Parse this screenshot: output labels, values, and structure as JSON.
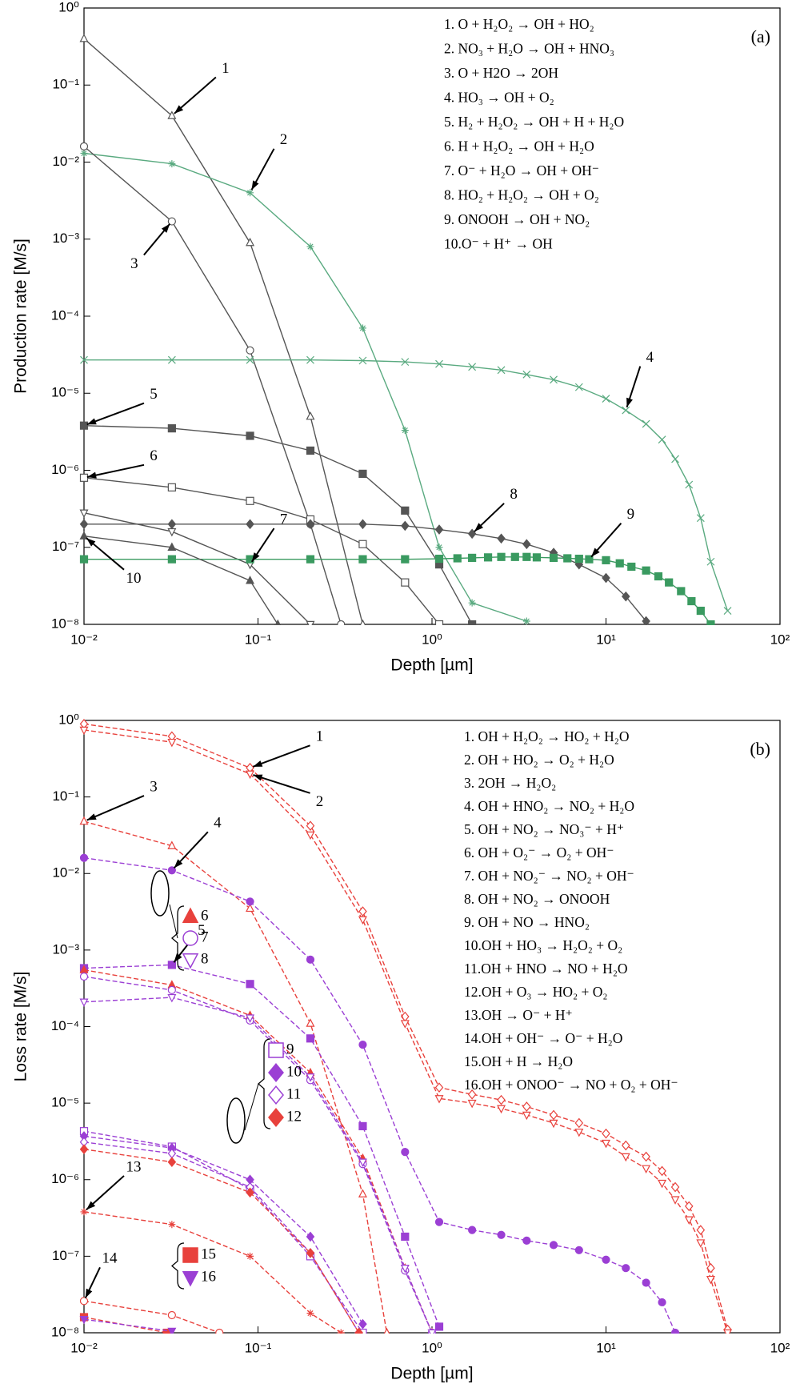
{
  "chart_data": [
    {
      "type": "line",
      "panel": "(a)",
      "xlabel": "Depth [µm]",
      "ylabel": "Production rate [M/s]",
      "xscale": "log",
      "yscale": "log",
      "xlim": [
        0.01,
        100
      ],
      "ylim": [
        1e-08,
        1
      ],
      "xticks": [
        {
          "value": 0.01,
          "label": "10⁻²"
        },
        {
          "value": 0.1,
          "label": "10⁻¹"
        },
        {
          "value": 1,
          "label": "10⁰"
        },
        {
          "value": 10,
          "label": "10¹"
        },
        {
          "value": 100,
          "label": "10²"
        }
      ],
      "yticks": [
        {
          "value": 1e-08,
          "label": "10⁻⁸"
        },
        {
          "value": 1e-07,
          "label": "10⁻⁷"
        },
        {
          "value": 1e-06,
          "label": "10⁻⁶"
        },
        {
          "value": 1e-05,
          "label": "10⁻⁵"
        },
        {
          "value": 0.0001,
          "label": "10⁻⁴"
        },
        {
          "value": 0.001,
          "label": "10⁻³"
        },
        {
          "value": 0.01,
          "label": "10⁻²"
        },
        {
          "value": 0.1,
          "label": "10⁻¹"
        },
        {
          "value": 1,
          "label": "10⁰"
        }
      ],
      "annotations": [
        "1",
        "2",
        "3",
        "4",
        "5",
        "6",
        "7",
        "8",
        "9",
        "10"
      ],
      "series": [
        {
          "name": "1.  O + H₂O₂ → OH + HO₂",
          "color": "#555555",
          "marker": "triangle",
          "x": [
            0.01,
            0.032,
            0.09,
            0.2,
            0.4
          ],
          "values": [
            0.4,
            0.04,
            0.0009,
            5e-06,
            1e-08
          ]
        },
        {
          "name": "2.  NO₃ + H₂O → OH + HNO₃",
          "color": "#5aaa80",
          "marker": "asterisk",
          "x": [
            0.01,
            0.032,
            0.09,
            0.2,
            0.4,
            0.7,
            1.1,
            1.7,
            3.5
          ],
          "values": [
            0.013,
            0.0095,
            0.004,
            0.0008,
            7e-05,
            3.3e-06,
            1e-07,
            1.9e-08,
            1.1e-08
          ]
        },
        {
          "name": "3.  O + H2O → 2OH",
          "color": "#555555",
          "marker": "circle",
          "x": [
            0.01,
            0.032,
            0.09,
            0.2,
            0.3
          ],
          "values": [
            0.016,
            0.0017,
            3.6e-05,
            2e-07,
            1e-08
          ]
        },
        {
          "name": "4.  HO₃ → OH + O₂",
          "color": "#5aaa80",
          "marker": "x",
          "x": [
            0.01,
            0.032,
            0.09,
            0.2,
            0.4,
            0.7,
            1.1,
            1.7,
            2.5,
            3.5,
            5,
            7,
            10,
            13,
            17,
            21,
            25,
            30,
            35,
            40,
            50
          ],
          "values": [
            2.7e-05,
            2.7e-05,
            2.7e-05,
            2.7e-05,
            2.65e-05,
            2.55e-05,
            2.4e-05,
            2.2e-05,
            2e-05,
            1.75e-05,
            1.5e-05,
            1.2e-05,
            8.5e-06,
            6e-06,
            4e-06,
            2.5e-06,
            1.4e-06,
            6.5e-07,
            2.4e-07,
            6.5e-08,
            1.5e-08
          ]
        },
        {
          "name": "5.  H₂ + H₂O₂ → OH + H + H₂O",
          "color": "#555555",
          "marker": "square-filled",
          "x": [
            0.01,
            0.032,
            0.09,
            0.2,
            0.4,
            0.7,
            1.1,
            1.7
          ],
          "values": [
            3.8e-06,
            3.5e-06,
            2.8e-06,
            1.8e-06,
            9e-07,
            3e-07,
            6e-08,
            1e-08
          ]
        },
        {
          "name": "6.  H + H₂O₂ → OH + H₂O",
          "color": "#555555",
          "marker": "square",
          "x": [
            0.01,
            0.032,
            0.09,
            0.2,
            0.4,
            0.7,
            1.1
          ],
          "values": [
            8e-07,
            6e-07,
            4e-07,
            2.3e-07,
            1.1e-07,
            3.5e-08,
            1e-08
          ]
        },
        {
          "name": "7.  O⁻ + H₂O → OH + OH⁻",
          "color": "#555555",
          "marker": "triangle-down",
          "x": [
            0.01,
            0.032,
            0.09,
            0.2
          ],
          "values": [
            2.8e-07,
            1.6e-07,
            6e-08,
            1e-08
          ]
        },
        {
          "name": "8.  HO₂ + H₂O₂ → OH + O₂",
          "color": "#555555",
          "marker": "diamond-filled",
          "x": [
            0.01,
            0.032,
            0.09,
            0.2,
            0.4,
            0.7,
            1.1,
            1.7,
            2.5,
            3.5,
            5,
            7,
            10,
            13,
            17
          ],
          "values": [
            2e-07,
            2e-07,
            2e-07,
            2e-07,
            2e-07,
            1.9e-07,
            1.7e-07,
            1.5e-07,
            1.3e-07,
            1.1e-07,
            8.5e-08,
            6e-08,
            4e-08,
            2.3e-08,
            1.1e-08
          ]
        },
        {
          "name": "9.  ONOOH → OH + NO₂",
          "color": "#3a9a60",
          "marker": "square-filled",
          "x": [
            0.01,
            0.032,
            0.09,
            0.2,
            0.4,
            0.7,
            1.1,
            1.4,
            1.7,
            2.1,
            2.5,
            3,
            3.5,
            4,
            5,
            6,
            7,
            8,
            10,
            12,
            14,
            17,
            20,
            23,
            27,
            31,
            35,
            40
          ],
          "values": [
            7e-08,
            7e-08,
            7e-08,
            7e-08,
            7e-08,
            7e-08,
            7.1e-08,
            7.2e-08,
            7.3e-08,
            7.4e-08,
            7.5e-08,
            7.5e-08,
            7.5e-08,
            7.4e-08,
            7.3e-08,
            7.2e-08,
            7.1e-08,
            7e-08,
            6.8e-08,
            6.2e-08,
            5.6e-08,
            5e-08,
            4.2e-08,
            3.5e-08,
            2.7e-08,
            2e-08,
            1.5e-08,
            1e-08
          ]
        },
        {
          "name": "10.O⁻ + H⁺ → OH",
          "color": "#555555",
          "marker": "triangle-filled",
          "x": [
            0.01,
            0.032,
            0.09,
            0.13
          ],
          "values": [
            1.4e-07,
            1e-07,
            3.7e-08,
            1e-08
          ]
        }
      ]
    },
    {
      "type": "line",
      "panel": "(b)",
      "xlabel": "Depth [µm]",
      "ylabel": "Loss rate [M/s]",
      "xscale": "log",
      "yscale": "log",
      "xlim": [
        0.01,
        100
      ],
      "ylim": [
        1e-08,
        1
      ],
      "xticks": [
        {
          "value": 0.01,
          "label": "10⁻²"
        },
        {
          "value": 0.1,
          "label": "10⁻¹"
        },
        {
          "value": 1,
          "label": "10⁰"
        },
        {
          "value": 10,
          "label": "10¹"
        },
        {
          "value": 100,
          "label": "10²"
        }
      ],
      "yticks": [
        {
          "value": 1e-08,
          "label": "10⁻⁸"
        },
        {
          "value": 1e-07,
          "label": "10⁻⁷"
        },
        {
          "value": 1e-06,
          "label": "10⁻⁶"
        },
        {
          "value": 1e-05,
          "label": "10⁻⁵"
        },
        {
          "value": 0.0001,
          "label": "10⁻⁴"
        },
        {
          "value": 0.001,
          "label": "10⁻³"
        },
        {
          "value": 0.01,
          "label": "10⁻²"
        },
        {
          "value": 0.1,
          "label": "10⁻¹"
        },
        {
          "value": 1,
          "label": "10⁰"
        }
      ],
      "annotations": [
        "1",
        "2",
        "3",
        "4",
        "5",
        "13",
        "14"
      ],
      "marker_labels": [
        "6",
        "7",
        "8",
        "9",
        "10",
        "11",
        "12",
        "15",
        "16"
      ],
      "series": [
        {
          "name": "1.  OH + H₂O₂ → HO₂ + H₂O",
          "color": "#e8413c",
          "marker": "diamond",
          "x": [
            0.01,
            0.032,
            0.09,
            0.2,
            0.4,
            0.7,
            1.1,
            1.7,
            2.5,
            3.5,
            5,
            7,
            10,
            13,
            17,
            21,
            25,
            30,
            35,
            40,
            50
          ],
          "values": [
            0.9,
            0.62,
            0.24,
            0.042,
            0.0032,
            0.000135,
            1.6e-05,
            1.3e-05,
            1.1e-05,
            9e-06,
            7e-06,
            5.5e-06,
            4e-06,
            2.8e-06,
            2e-06,
            1.3e-06,
            8e-07,
            4.5e-07,
            2.2e-07,
            7e-08,
            1.1e-08
          ]
        },
        {
          "name": "2.  OH + HO₂ → O₂ + H₂O",
          "color": "#e8413c",
          "marker": "triangle-down",
          "x": [
            0.01,
            0.032,
            0.09,
            0.2,
            0.4,
            0.7,
            1.1,
            1.7,
            2.5,
            3.5,
            5,
            7,
            10,
            13,
            17,
            21,
            25,
            30,
            35,
            40,
            50
          ],
          "values": [
            0.75,
            0.52,
            0.2,
            0.032,
            0.0025,
            0.00011,
            1.15e-05,
            1e-05,
            8.5e-06,
            7e-06,
            5.5e-06,
            4.2e-06,
            3e-06,
            2e-06,
            1.4e-06,
            9e-07,
            5.5e-07,
            3e-07,
            1.5e-07,
            5e-08,
            1e-08
          ]
        },
        {
          "name": "3.  2OH → H₂O₂",
          "color": "#e8413c",
          "marker": "triangle",
          "x": [
            0.01,
            0.032,
            0.09,
            0.2,
            0.4,
            0.55
          ],
          "values": [
            0.048,
            0.023,
            0.0035,
            0.00011,
            6.5e-07,
            1e-08
          ]
        },
        {
          "name": "4.  OH + HNO₂ → NO₂ + H₂O",
          "color": "#9b3fd4",
          "marker": "circle-filled",
          "x": [
            0.01,
            0.032,
            0.09,
            0.2,
            0.4,
            0.7,
            1.1,
            1.7,
            2.5,
            3.5,
            5,
            7,
            10,
            13,
            17,
            21,
            25
          ],
          "values": [
            0.016,
            0.011,
            0.0043,
            0.00075,
            5.8e-05,
            2.3e-06,
            2.8e-07,
            2.2e-07,
            1.9e-07,
            1.6e-07,
            1.4e-07,
            1.2e-07,
            9e-08,
            7e-08,
            4.5e-08,
            2.5e-08,
            1e-08
          ]
        },
        {
          "name": "5.  OH + NO₂ → NO₃⁻ + H⁺",
          "color": "#9b3fd4",
          "marker": "square-filled",
          "x": [
            0.01,
            0.032,
            0.09,
            0.2,
            0.4,
            0.7,
            1.1
          ],
          "values": [
            0.00058,
            0.00064,
            0.00036,
            7e-05,
            5e-06,
            1.8e-07,
            1.2e-08
          ]
        },
        {
          "name": "6.  OH + O₂⁻ → O₂ + OH⁻",
          "color": "#e8413c",
          "marker": "triangle-filled",
          "x": [
            0.01,
            0.032,
            0.09,
            0.2,
            0.4,
            0.7,
            1
          ],
          "values": [
            0.00055,
            0.00035,
            0.00014,
            2.5e-05,
            1.9e-06,
            7e-08,
            1e-08
          ]
        },
        {
          "name": "7.  OH + NO₂⁻ → NO₂ + OH⁻",
          "color": "#9b3fd4",
          "marker": "circle",
          "x": [
            0.01,
            0.032,
            0.09,
            0.2,
            0.4,
            0.7,
            1
          ],
          "values": [
            0.00045,
            0.0003,
            0.00012,
            2e-05,
            1.6e-06,
            6.5e-08,
            1e-08
          ]
        },
        {
          "name": "8.  OH + NO₂ → ONOOH",
          "color": "#9b3fd4",
          "marker": "triangle-down",
          "x": [
            0.01,
            0.032,
            0.09,
            0.2,
            0.4,
            0.7,
            1
          ],
          "values": [
            0.00021,
            0.00024,
            0.00013,
            2.2e-05,
            1.7e-06,
            7e-08,
            1e-08
          ]
        },
        {
          "name": "9.  OH + NO → HNO₂",
          "color": "#9b3fd4",
          "marker": "square",
          "x": [
            0.01,
            0.032,
            0.09,
            0.2,
            0.4
          ],
          "values": [
            4.3e-06,
            2.7e-06,
            7.5e-07,
            1e-07,
            1e-08
          ]
        },
        {
          "name": "10.OH + HO₃ → H₂O₂ + O₂",
          "color": "#9b3fd4",
          "marker": "diamond-filled",
          "x": [
            0.01,
            0.032,
            0.09,
            0.2,
            0.4
          ],
          "values": [
            3.7e-06,
            2.6e-06,
            1e-06,
            1.8e-07,
            1.3e-08
          ]
        },
        {
          "name": "11.OH + HNO → NO + H₂O",
          "color": "#9b3fd4",
          "marker": "diamond",
          "x": [
            0.01,
            0.032,
            0.09,
            0.2,
            0.38
          ],
          "values": [
            3.1e-06,
            2.2e-06,
            8e-07,
            1.1e-07,
            1e-08
          ]
        },
        {
          "name": "12.OH + O₃ → HO₂ + O₂",
          "color": "#e8413c",
          "marker": "diamond-filled",
          "x": [
            0.01,
            0.032,
            0.09,
            0.2,
            0.38
          ],
          "values": [
            2.5e-06,
            1.7e-06,
            6.8e-07,
            1.1e-07,
            1e-08
          ]
        },
        {
          "name": "13.OH → O⁻ + H⁺",
          "color": "#e8413c",
          "marker": "asterisk",
          "x": [
            0.01,
            0.032,
            0.09,
            0.2,
            0.3
          ],
          "values": [
            3.8e-07,
            2.6e-07,
            1e-07,
            1.8e-08,
            1e-08
          ]
        },
        {
          "name": "14.OH + OH⁻ → O⁻ + H₂O",
          "color": "#e8413c",
          "marker": "circle",
          "x": [
            0.01,
            0.032,
            0.06
          ],
          "values": [
            2.6e-08,
            1.7e-08,
            1e-08
          ]
        },
        {
          "name": "15.OH + H → H₂O",
          "color": "#e8413c",
          "marker": "square-filled",
          "x": [
            0.01,
            0.03
          ],
          "values": [
            1.6e-08,
            1e-08
          ]
        },
        {
          "name": "16.OH + ONOO⁻ → NO + O₂ + OH⁻",
          "color": "#9b3fd4",
          "marker": "triangle-down-filled",
          "x": [
            0.01,
            0.032
          ],
          "values": [
            1.5e-08,
            1.05e-08
          ]
        }
      ]
    }
  ]
}
